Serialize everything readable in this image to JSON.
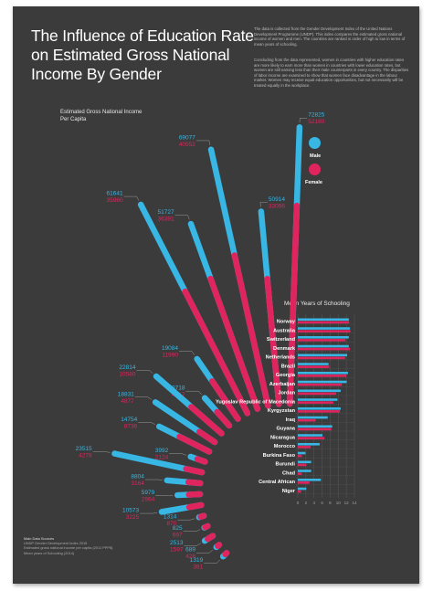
{
  "title": "The Influence of Education Rate on Estimated Gross National Income By Gender",
  "intro": [
    "The data is collected from the Gender Development Index of the United Nations Development Programme (UNDP). This index compares the estimated gross national income of women and men. The countries are ranked in order of high to low in terms of mean years of schooling.",
    "Concluding from the data represented, women in countries with higher education rates are more likely to earn more than women in countries with lower education rates, but women are still earning less than their male counterparts in every country. The disparities of labor income are examined to show that women face disadvantage in the labour market. Women may receive equal education opportunities, but not necessarily will be treated equally in the workplace."
  ],
  "legend": [
    {
      "label": "Male",
      "color": "#38b6e4"
    },
    {
      "label": "Female",
      "color": "#e0245e"
    }
  ],
  "sources": {
    "heading": "Main Data Sources",
    "lines": [
      "UNDP Gender Development Index 2015",
      "Estimated gross national income per capita (2011 PPP$)",
      "Mean years of Schooling (2014)"
    ]
  },
  "colors": {
    "background": "#3b3b3b",
    "male": "#38b6e4",
    "female": "#e0245e",
    "female_light": "#f47f7f",
    "male_text": "#38b6e4",
    "female_text": "#e0245e"
  },
  "chart_data": [
    {
      "type": "bar",
      "ylabel": "Estimated Gross National Income Per Capita",
      "categories": [
        "Norway",
        "Australia",
        "Switzerland",
        "Denmark",
        "Netherlands",
        "Brazil",
        "Georgia",
        "Azerbaijan",
        "Jordan",
        "Yugoslav Republic of Macedonia",
        "Kyrgyzstan",
        "Iraq",
        "Guyana",
        "Nicaragua",
        "Morocco",
        "Burkina Faso",
        "Burundi",
        "Chad",
        "Central African",
        "Niger"
      ],
      "series": [
        {
          "name": "Male",
          "values": [
            72825,
            50914,
            69077,
            51727,
            61641,
            19084,
            9718,
            22814,
            18831,
            14754,
            3992,
            23515,
            8804,
            5979,
            10573,
            1314,
            825,
            2513,
            689,
            1319
          ]
        },
        {
          "name": "Female",
          "values": [
            52180,
            33096,
            40552,
            36391,
            35960,
            11990,
            4817,
            10580,
            4877,
            8736,
            2124,
            4278,
            3164,
            2964,
            3225,
            870,
            697,
            1597,
            428,
            381
          ]
        }
      ]
    },
    {
      "type": "bar",
      "title": "Mean Years of Schooling",
      "categories": [
        "Norway",
        "Australia",
        "Switzerland",
        "Denmark",
        "Netherlands",
        "Brazil",
        "Georgia",
        "Azerbaijan",
        "Jordan",
        "Yugoslav Republic of Macedonia",
        "Kyrgyzstan",
        "Iraq",
        "Guyana",
        "Nicaragua",
        "Morocco",
        "Burkina Faso",
        "Burundi",
        "Chad",
        "Central African",
        "Niger"
      ],
      "series": [
        {
          "name": "Male",
          "values": [
            12.6,
            12.9,
            12.6,
            12.6,
            12.2,
            7.6,
            12.4,
            12.1,
            10.6,
            9.8,
            10.6,
            7.4,
            8.5,
            6.1,
            5.4,
            1.9,
            3.3,
            3.3,
            5.7,
            2.1
          ]
        },
        {
          "name": "Female",
          "values": [
            12.7,
            13.0,
            11.8,
            12.9,
            11.7,
            7.8,
            12.0,
            10.9,
            9.5,
            8.8,
            10.4,
            4.4,
            8.3,
            6.6,
            3.2,
            1.0,
            2.1,
            1.0,
            2.9,
            0.8
          ]
        }
      ],
      "xlim": [
        0,
        14
      ],
      "xticks": [
        0,
        2,
        4,
        6,
        8,
        10,
        12,
        14
      ]
    }
  ]
}
